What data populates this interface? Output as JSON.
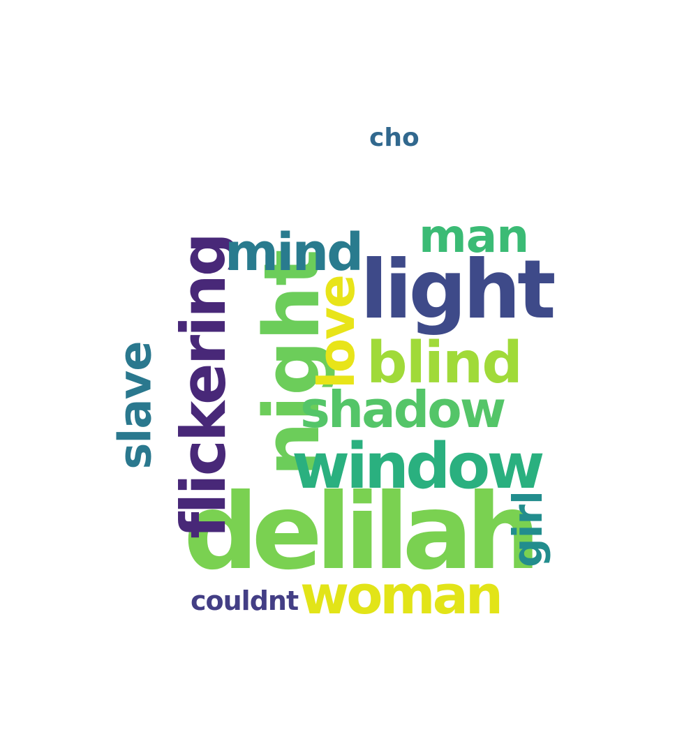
{
  "words": [
    {
      "text": "delilah",
      "color": "#7ad151",
      "rotated": false
    },
    {
      "text": "light",
      "color": "#3e4a89",
      "rotated": false
    },
    {
      "text": "night",
      "color": "#6ccd5a",
      "rotated": true
    },
    {
      "text": "flickering",
      "color": "#482878",
      "rotated": true
    },
    {
      "text": "window",
      "color": "#2ab07f",
      "rotated": false
    },
    {
      "text": "woman",
      "color": "#e2e418",
      "rotated": false
    },
    {
      "text": "shadow",
      "color": "#54c568",
      "rotated": false
    },
    {
      "text": "blind",
      "color": "#a0da39",
      "rotated": false
    },
    {
      "text": "mind",
      "color": "#297b8e",
      "rotated": false
    },
    {
      "text": "man",
      "color": "#3bbb75",
      "rotated": false
    },
    {
      "text": "love",
      "color": "#e8e419",
      "rotated": true
    },
    {
      "text": "slave",
      "color": "#2a788e",
      "rotated": true
    },
    {
      "text": "girl",
      "color": "#228d8d",
      "rotated": true
    },
    {
      "text": "couldnt",
      "color": "#433e85",
      "rotated": false
    },
    {
      "text": "cho",
      "color": "#31688e",
      "rotated": false
    }
  ]
}
